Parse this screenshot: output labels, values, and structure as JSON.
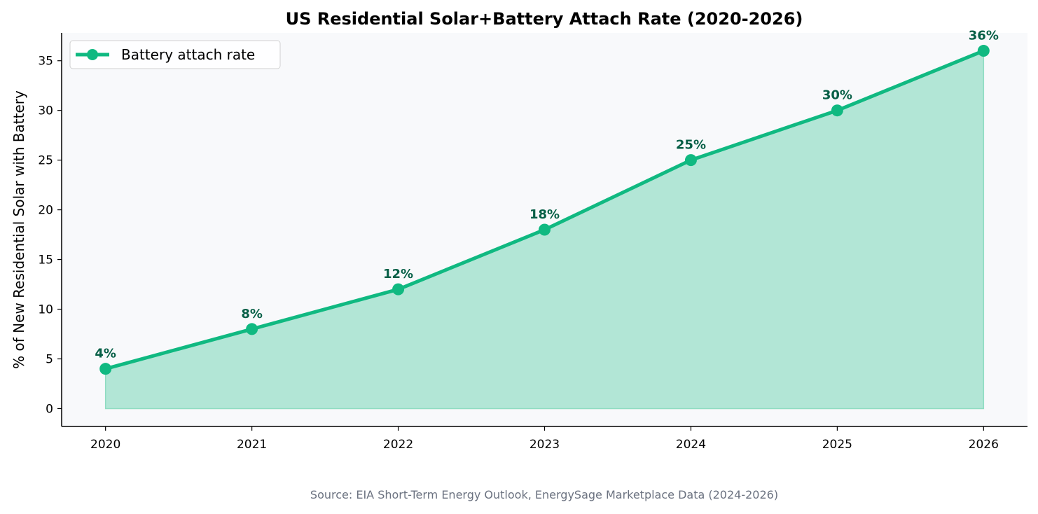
{
  "chart_data": {
    "type": "area",
    "title": "US Residential Solar+Battery Attach Rate (2020-2026)",
    "xlabel": "",
    "ylabel": "% of New Residential Solar with Battery",
    "x": [
      2020,
      2021,
      2022,
      2023,
      2024,
      2025,
      2026
    ],
    "series": [
      {
        "name": "Battery attach rate",
        "values": [
          4,
          8,
          12,
          18,
          25,
          30,
          36
        ],
        "data_labels": [
          "4%",
          "8%",
          "12%",
          "18%",
          "25%",
          "30%",
          "36%"
        ]
      }
    ],
    "xticks": [
      "2020",
      "2021",
      "2022",
      "2023",
      "2024",
      "2025",
      "2026"
    ],
    "yticks": [
      "0",
      "5",
      "10",
      "15",
      "20",
      "25",
      "30",
      "35"
    ],
    "xlim": [
      2019.7,
      2026.3
    ],
    "ylim": [
      -1.8,
      37.8
    ],
    "grid": false,
    "legend": "top-left",
    "source": "Source: EIA Short-Term Energy Outlook, EnergySage Marketplace Data (2024-2026)",
    "colors": {
      "line": "#10b981",
      "fill": "#b2e6d6",
      "label": "#065f46",
      "plot_bg": "#f8f9fb",
      "source": "#6b7280"
    }
  }
}
